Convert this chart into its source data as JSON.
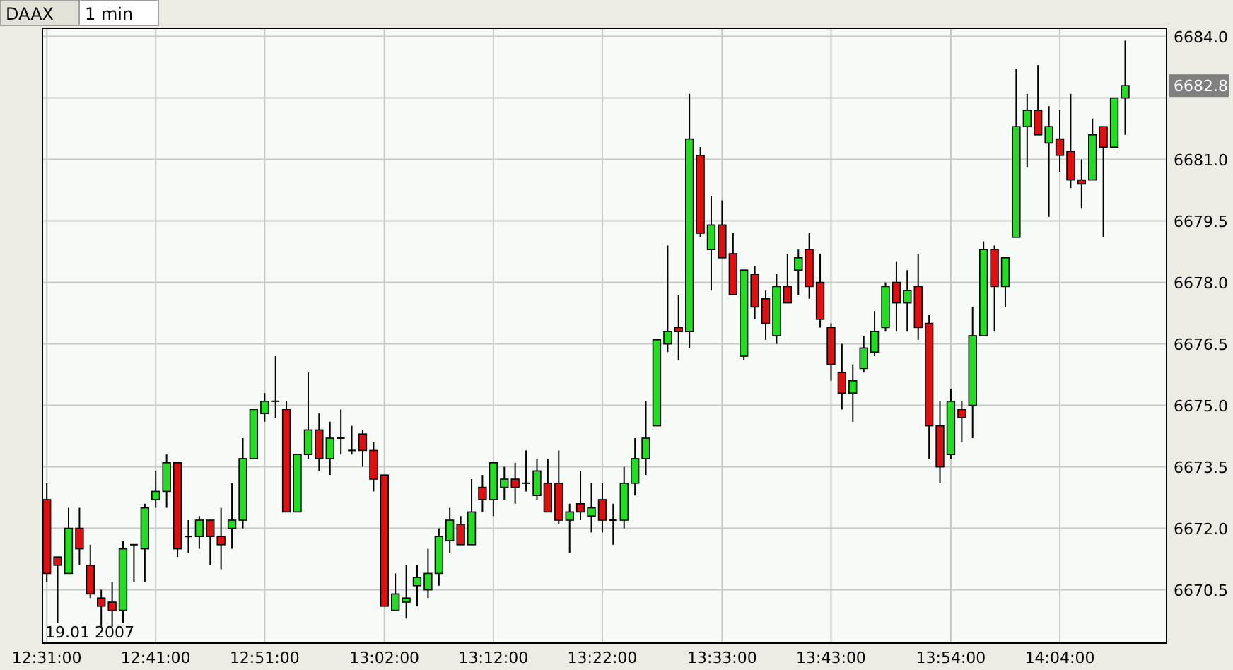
{
  "chart_data": {
    "type": "candlestick",
    "title": "DAAX",
    "subtitle": "1 min",
    "annotations": [
      "19.01 2007",
      "6682.8"
    ],
    "x": [
      12.5167,
      12.5333,
      12.55,
      12.5667,
      12.5833,
      12.6,
      12.6167,
      12.6333,
      12.65,
      12.6667,
      12.6833,
      12.7,
      12.7167,
      12.7333,
      12.75,
      12.7667,
      12.7833,
      12.8,
      12.8167,
      12.8333,
      12.85,
      12.8667,
      12.8833,
      12.9,
      12.9167,
      12.9333,
      12.95,
      12.9667,
      12.9833,
      13,
      13.0167,
      13.0333,
      13.05,
      13.0667,
      13.0833,
      13.1,
      13.1167,
      13.1333,
      13.15,
      13.1667,
      13.1833,
      13.2,
      13.2167,
      13.2333,
      13.25,
      13.2667,
      13.2833,
      13.3,
      13.3167,
      13.3333,
      13.35,
      13.3667,
      13.3833,
      13.4,
      13.4167,
      13.4333,
      13.45,
      13.4667,
      13.4833,
      13.5,
      13.5167,
      13.5333,
      13.55,
      13.5667,
      13.5833,
      13.6,
      13.6167,
      13.6333,
      13.65,
      13.6667,
      13.6833,
      13.7,
      13.7167,
      13.7333,
      13.75,
      13.7667,
      13.7833,
      13.8,
      13.8167,
      13.8333,
      13.85,
      13.8667,
      13.8833,
      13.9,
      13.9167,
      13.9333,
      13.95,
      13.9667,
      13.9833,
      14,
      14.0167,
      14.0333,
      14.05,
      14.0667,
      14.0833,
      14.1,
      14.1167,
      14.1333,
      14.15,
      14.1667
    ],
    "ohlc": [
      [
        6672.7,
        6673.1,
        6670.7,
        6670.9
      ],
      [
        6671.3,
        6671.3,
        6669.7,
        6671.1
      ],
      [
        6670.9,
        6672.5,
        6670.9,
        6672.0
      ],
      [
        6672.0,
        6672.5,
        6671.1,
        6671.5
      ],
      [
        6671.1,
        6671.6,
        6670.3,
        6670.4
      ],
      [
        6670.3,
        6670.5,
        6669.6,
        6670.1
      ],
      [
        6670.2,
        6670.7,
        6669.6,
        6670.0
      ],
      [
        6670.0,
        6671.7,
        6669.7,
        6671.5
      ],
      [
        6671.6,
        6671.6,
        6670.7,
        6671.6
      ],
      [
        6671.5,
        6672.6,
        6670.7,
        6672.5
      ],
      [
        6672.7,
        6673.4,
        6672.5,
        6672.9
      ],
      [
        6672.9,
        6673.8,
        6672.5,
        6673.6
      ],
      [
        6673.6,
        6673.6,
        6671.3,
        6671.5
      ],
      [
        6671.8,
        6672.2,
        6671.4,
        6671.8
      ],
      [
        6671.8,
        6672.3,
        6671.5,
        6672.2
      ],
      [
        6672.2,
        6672.2,
        6671.1,
        6671.8
      ],
      [
        6671.8,
        6672.5,
        6671.0,
        6671.6
      ],
      [
        6672.0,
        6673.1,
        6671.5,
        6672.2
      ],
      [
        6672.2,
        6674.2,
        6672.0,
        6673.7
      ],
      [
        6673.7,
        6674.9,
        6673.7,
        6674.9
      ],
      [
        6674.8,
        6675.3,
        6674.6,
        6675.1
      ],
      [
        6675.1,
        6676.2,
        6674.7,
        6675.1
      ],
      [
        6674.9,
        6675.1,
        6672.4,
        6672.4
      ],
      [
        6672.4,
        6673.8,
        6672.4,
        6673.8
      ],
      [
        6673.8,
        6675.8,
        6673.7,
        6674.4
      ],
      [
        6674.4,
        6674.8,
        6673.4,
        6673.7
      ],
      [
        6673.7,
        6674.6,
        6673.3,
        6674.2
      ],
      [
        6674.2,
        6674.9,
        6673.8,
        6674.2
      ],
      [
        6673.9,
        6674.5,
        6673.8,
        6673.9
      ],
      [
        6674.3,
        6674.4,
        6673.5,
        6673.9
      ],
      [
        6673.9,
        6674.1,
        6672.9,
        6673.2
      ],
      [
        6673.3,
        6673.3,
        6670.1,
        6670.1
      ],
      [
        6670.0,
        6670.9,
        6670.0,
        6670.4
      ],
      [
        6670.2,
        6671.1,
        6669.8,
        6670.3
      ],
      [
        6670.6,
        6671.1,
        6670.1,
        6670.8
      ],
      [
        6670.5,
        6671.5,
        6670.3,
        6670.9
      ],
      [
        6670.9,
        6672.0,
        6670.6,
        6671.8
      ],
      [
        6671.7,
        6672.5,
        6671.4,
        6672.2
      ],
      [
        6672.1,
        6672.3,
        6671.6,
        6671.6
      ],
      [
        6671.6,
        6673.2,
        6671.6,
        6672.4
      ],
      [
        6673.0,
        6673.3,
        6672.4,
        6672.7
      ],
      [
        6672.7,
        6673.6,
        6672.3,
        6673.6
      ],
      [
        6673.0,
        6673.5,
        6672.7,
        6673.2
      ],
      [
        6673.2,
        6673.6,
        6672.6,
        6673.0
      ],
      [
        6673.1,
        6673.9,
        6672.9,
        6673.1
      ],
      [
        6672.8,
        6673.7,
        6672.7,
        6673.4
      ],
      [
        6673.1,
        6673.7,
        6672.4,
        6672.4
      ],
      [
        6673.1,
        6673.9,
        6672.1,
        6672.2
      ],
      [
        6672.2,
        6672.6,
        6671.4,
        6672.4
      ],
      [
        6672.6,
        6673.4,
        6672.2,
        6672.4
      ],
      [
        6672.3,
        6673.1,
        6671.9,
        6672.5
      ],
      [
        6672.7,
        6673.1,
        6671.9,
        6672.2
      ],
      [
        6672.2,
        6672.6,
        6671.6,
        6672.2
      ],
      [
        6672.2,
        6673.5,
        6672.0,
        6673.1
      ],
      [
        6673.1,
        6674.2,
        6672.8,
        6673.7
      ],
      [
        6673.7,
        6675.1,
        6673.3,
        6674.2
      ],
      [
        6674.5,
        6676.6,
        6674.5,
        6676.6
      ],
      [
        6676.5,
        6678.9,
        6676.3,
        6676.8
      ],
      [
        6676.9,
        6677.7,
        6676.1,
        6676.8
      ],
      [
        6676.8,
        6682.6,
        6676.4,
        6681.5
      ],
      [
        6681.1,
        6681.3,
        6679.1,
        6679.2
      ],
      [
        6678.8,
        6680.1,
        6677.8,
        6679.4
      ],
      [
        6679.4,
        6680.0,
        6678.6,
        6678.6
      ],
      [
        6678.7,
        6679.2,
        6677.7,
        6677.7
      ],
      [
        6676.2,
        6678.3,
        6676.1,
        6678.3
      ],
      [
        6678.2,
        6678.4,
        6677.1,
        6677.4
      ],
      [
        6677.6,
        6677.8,
        6676.6,
        6677.0
      ],
      [
        6676.7,
        6678.2,
        6676.5,
        6677.9
      ],
      [
        6677.9,
        6678.7,
        6677.5,
        6677.5
      ],
      [
        6678.3,
        6678.8,
        6677.7,
        6678.6
      ],
      [
        6678.8,
        6679.2,
        6677.6,
        6677.9
      ],
      [
        6678.0,
        6678.7,
        6676.9,
        6677.1
      ],
      [
        6676.9,
        6677.0,
        6675.6,
        6676.0
      ],
      [
        6675.8,
        6676.5,
        6674.9,
        6675.3
      ],
      [
        6675.3,
        6676.0,
        6674.6,
        6675.6
      ],
      [
        6675.9,
        6676.7,
        6675.8,
        6676.4
      ],
      [
        6676.3,
        6677.3,
        6676.2,
        6676.8
      ],
      [
        6676.9,
        6678.0,
        6676.8,
        6677.9
      ],
      [
        6678.0,
        6678.5,
        6676.8,
        6677.5
      ],
      [
        6677.5,
        6678.3,
        6676.8,
        6677.8
      ],
      [
        6677.9,
        6678.7,
        6676.6,
        6676.9
      ],
      [
        6677.0,
        6677.2,
        6673.7,
        6674.5
      ],
      [
        6674.5,
        6675.1,
        6673.1,
        6673.5
      ],
      [
        6673.8,
        6675.4,
        6673.7,
        6675.1
      ],
      [
        6674.9,
        6675.1,
        6674.1,
        6674.7
      ],
      [
        6675.0,
        6677.4,
        6674.2,
        6676.7
      ],
      [
        6676.7,
        6679.0,
        6676.7,
        6678.8
      ],
      [
        6678.8,
        6678.9,
        6676.8,
        6677.9
      ],
      [
        6677.9,
        6678.6,
        6677.4,
        6678.6
      ],
      [
        6679.1,
        6683.2,
        6679.1,
        6681.8
      ],
      [
        6681.8,
        6682.6,
        6680.8,
        6682.2
      ],
      [
        6682.2,
        6683.3,
        6681.6,
        6681.6
      ],
      [
        6681.4,
        6682.3,
        6679.6,
        6681.8
      ],
      [
        6681.5,
        6682.2,
        6680.7,
        6681.1
      ],
      [
        6681.2,
        6682.6,
        6680.3,
        6680.5
      ],
      [
        6680.5,
        6681.0,
        6679.8,
        6680.4
      ],
      [
        6680.5,
        6682.0,
        6680.5,
        6681.6
      ],
      [
        6681.8,
        6681.8,
        6679.1,
        6681.3
      ],
      [
        6681.3,
        6682.5,
        6681.3,
        6682.5
      ],
      [
        6682.5,
        6683.9,
        6681.6,
        6682.8
      ]
    ],
    "xlim": [
      12.51,
      14.23
    ],
    "xticks": [
      {
        "value": 12.5167,
        "label": "12:31:00"
      },
      {
        "value": 12.6833,
        "label": "12:41:00"
      },
      {
        "value": 12.85,
        "label": "12:51:00"
      },
      {
        "value": 13.0333,
        "label": "13:02:00"
      },
      {
        "value": 13.2,
        "label": "13:12:00"
      },
      {
        "value": 13.3667,
        "label": "13:22:00"
      },
      {
        "value": 13.55,
        "label": "13:33:00"
      },
      {
        "value": 13.7167,
        "label": "13:43:00"
      },
      {
        "value": 13.9,
        "label": "13:54:00"
      },
      {
        "value": 14.0667,
        "label": "14:04:00"
      }
    ],
    "ylim": [
      6669.2,
      6684.2
    ],
    "yticks": [
      {
        "value": 6670.5,
        "label": "6670.5"
      },
      {
        "value": 6672,
        "label": "6672.0"
      },
      {
        "value": 6673.5,
        "label": "6673.5"
      },
      {
        "value": 6675,
        "label": "6675.0"
      },
      {
        "value": 6676.5,
        "label": "6676.5"
      },
      {
        "value": 6678,
        "label": "6678.0"
      },
      {
        "value": 6679.5,
        "label": "6679.5"
      },
      {
        "value": 6681,
        "label": "6681.0"
      },
      {
        "value": 6682.5,
        "label": null
      },
      {
        "value": 6684,
        "label": "6684.0"
      }
    ],
    "grid": true
  }
}
